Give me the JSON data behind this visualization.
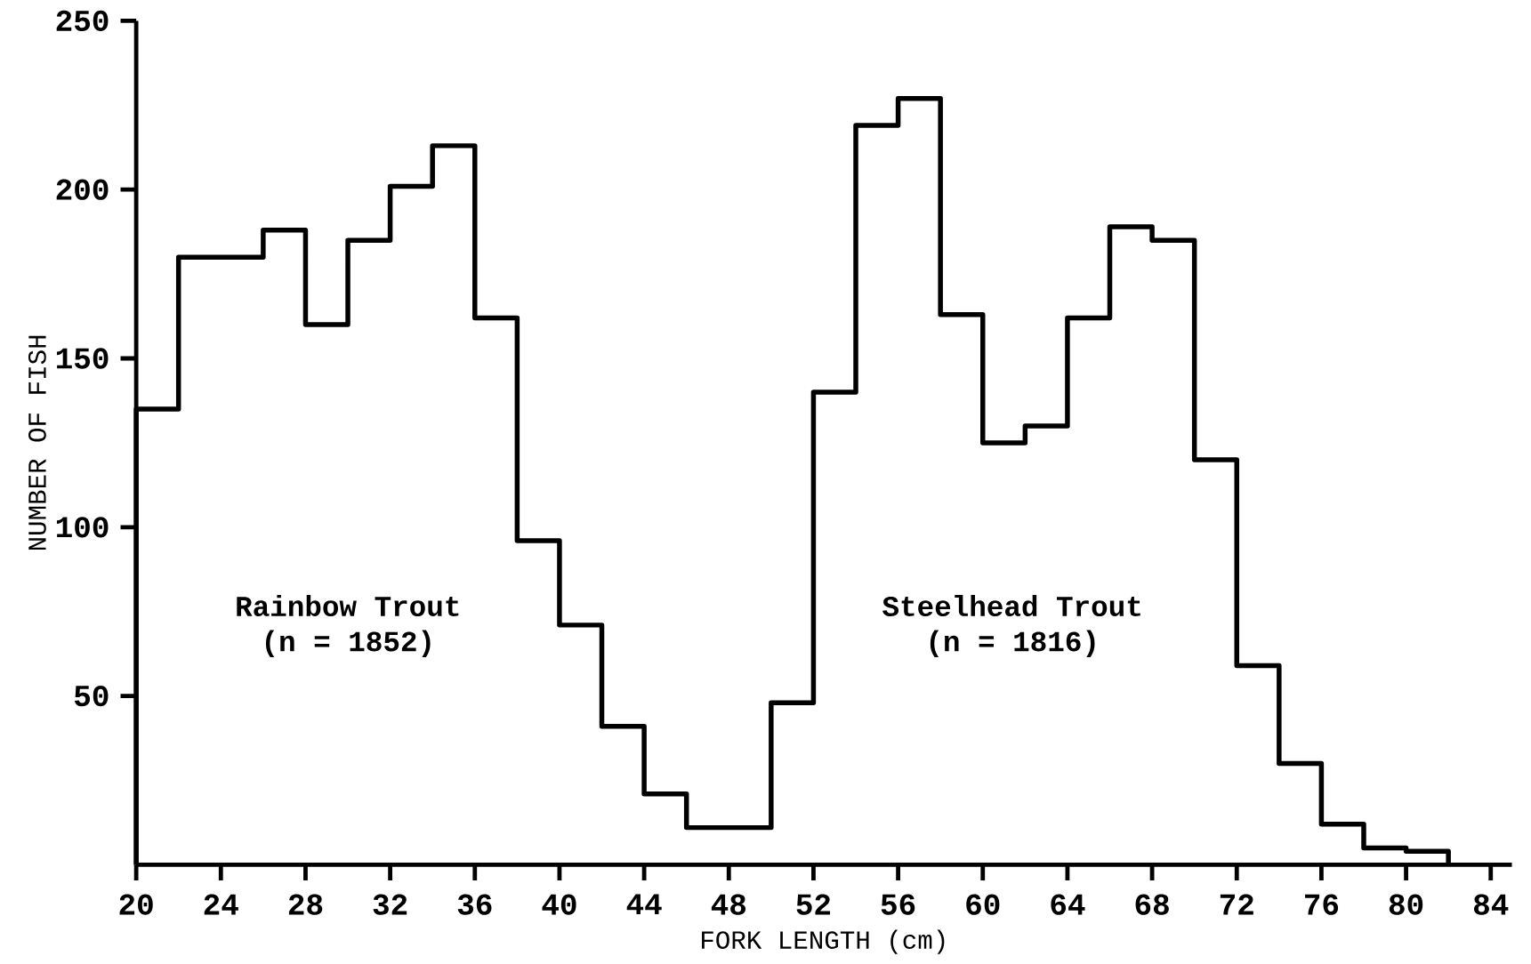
{
  "chart_data": {
    "type": "histogram",
    "xlabel": "FORK LENGTH (cm)",
    "ylabel": "NUMBER OF FISH",
    "color": "#000000",
    "bins": [
      20,
      22,
      24,
      26,
      28,
      30,
      32,
      34,
      36,
      38,
      40,
      42,
      44,
      46,
      48,
      50,
      52,
      54,
      56,
      58,
      60,
      62,
      64,
      66,
      68,
      70,
      72,
      74,
      76,
      78,
      80,
      82
    ],
    "values": [
      135,
      180,
      180,
      188,
      160,
      185,
      201,
      213,
      162,
      96,
      71,
      41,
      21,
      11,
      11,
      48,
      140,
      219,
      227,
      163,
      125,
      130,
      162,
      189,
      185,
      120,
      59,
      30,
      12,
      5,
      4
    ],
    "xlim": [
      20,
      85
    ],
    "ylim": [
      0,
      250
    ],
    "xticks": [
      20,
      24,
      28,
      32,
      36,
      40,
      44,
      48,
      52,
      56,
      60,
      64,
      68,
      72,
      76,
      80,
      84
    ],
    "yticks": [
      50,
      100,
      150,
      200,
      250
    ],
    "annotations": [
      "Rainbow Trout",
      "(n = 1852)",
      "Steelhead Trout",
      "(n = 1816)"
    ]
  }
}
